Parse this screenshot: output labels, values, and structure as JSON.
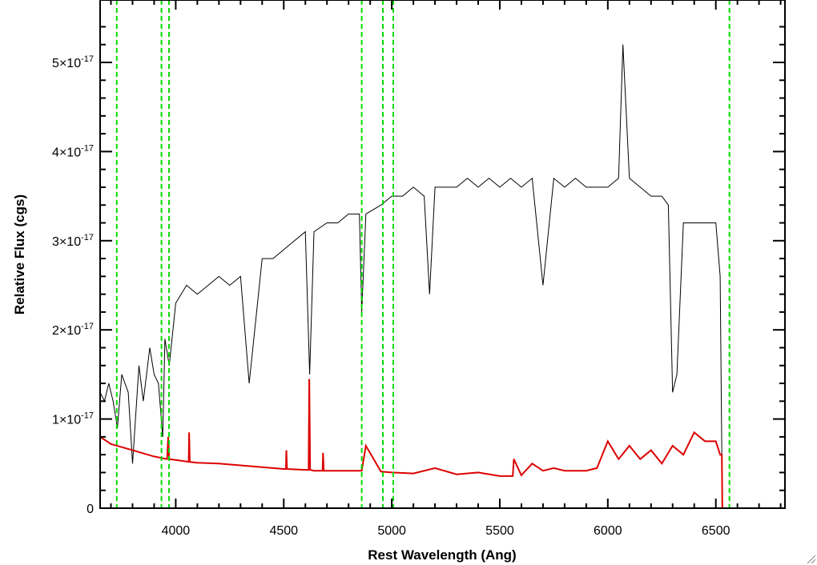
{
  "chart_data": {
    "type": "line",
    "title": "",
    "xlabel": "Rest Wavelength (Ang)",
    "ylabel": "Relative Flux (cgs)",
    "xlim": [
      3650,
      6820
    ],
    "ylim": [
      0,
      5.7e-17
    ],
    "xticks": [
      {
        "value": 4000,
        "label": "4000"
      },
      {
        "value": 4500,
        "label": "4500"
      },
      {
        "value": 5000,
        "label": "5000"
      },
      {
        "value": 5500,
        "label": "5500"
      },
      {
        "value": 6000,
        "label": "6000"
      },
      {
        "value": 6500,
        "label": "6500"
      }
    ],
    "yticks": [
      {
        "value": 0,
        "mant": "0",
        "exp": ""
      },
      {
        "value": 1e-17,
        "mant": "1×10",
        "exp": "-17"
      },
      {
        "value": 2e-17,
        "mant": "2×10",
        "exp": "-17"
      },
      {
        "value": 3e-17,
        "mant": "3×10",
        "exp": "-17"
      },
      {
        "value": 4e-17,
        "mant": "4×10",
        "exp": "-17"
      },
      {
        "value": 5e-17,
        "mant": "5×10",
        "exp": "-17"
      }
    ],
    "grid": false,
    "colors": {
      "spectrum": "#000000",
      "model": "#dd0000",
      "lines": "#00dd00"
    },
    "vertical_lines": [
      3727,
      3934,
      3969,
      4861,
      4959,
      5007,
      6563
    ],
    "series": [
      {
        "color": "#000000",
        "x": [
          3650,
          3670,
          3690,
          3710,
          3730,
          3750,
          3780,
          3800,
          3830,
          3850,
          3880,
          3900,
          3920,
          3940,
          3950,
          3970,
          4000,
          4050,
          4100,
          4150,
          4200,
          4250,
          4300,
          4340,
          4400,
          4450,
          4500,
          4550,
          4600,
          4620,
          4640,
          4700,
          4750,
          4800,
          4850,
          4861,
          4880,
          4950,
          5000,
          5050,
          5100,
          5150,
          5175,
          5200,
          5250,
          5300,
          5350,
          5400,
          5450,
          5500,
          5550,
          5600,
          5650,
          5700,
          5750,
          5800,
          5850,
          5900,
          5950,
          6000,
          6050,
          6070,
          6100,
          6150,
          6200,
          6250,
          6280,
          6300,
          6320,
          6350,
          6400,
          6450,
          6500,
          6520,
          6530,
          6540,
          6560,
          6600,
          6700,
          6820
        ],
        "y": [
          1.3e-17,
          1.2e-17,
          1.4e-17,
          1.2e-17,
          9e-18,
          1.5e-17,
          1.3e-17,
          5e-18,
          1.6e-17,
          1.2e-17,
          1.8e-17,
          1.5e-17,
          1.4e-17,
          8e-18,
          1.9e-17,
          1.6e-17,
          2.3e-17,
          2.5e-17,
          2.4e-17,
          2.5e-17,
          2.6e-17,
          2.5e-17,
          2.6e-17,
          1.4e-17,
          2.8e-17,
          2.8e-17,
          2.9e-17,
          3e-17,
          3.1e-17,
          1.5e-17,
          3.1e-17,
          3.2e-17,
          3.2e-17,
          3.3e-17,
          3.3e-17,
          2.2e-17,
          3.3e-17,
          3.4e-17,
          3.5e-17,
          3.5e-17,
          3.6e-17,
          3.5e-17,
          2.4e-17,
          3.6e-17,
          3.6e-17,
          3.6e-17,
          3.7e-17,
          3.6e-17,
          3.7e-17,
          3.6e-17,
          3.7e-17,
          3.6e-17,
          3.7e-17,
          2.5e-17,
          3.7e-17,
          3.6e-17,
          3.7e-17,
          3.6e-17,
          3.6e-17,
          3.6e-17,
          3.7e-17,
          5.2e-17,
          3.7e-17,
          3.6e-17,
          3.5e-17,
          3.5e-17,
          3.4e-17,
          1.3e-17,
          1.5e-17,
          3.2e-17,
          3.2e-17,
          3.2e-17,
          3.2e-17,
          2.6e-17,
          0,
          0,
          0,
          0,
          0,
          0
        ]
      },
      {
        "color": "#dd0000",
        "x": [
          3650,
          3700,
          3800,
          3900,
          3960,
          3965,
          3970,
          4000,
          4060,
          4062,
          4065,
          4100,
          4200,
          4300,
          4400,
          4500,
          4510,
          4512,
          4515,
          4600,
          4615,
          4618,
          4622,
          4640,
          4680,
          4682,
          4685,
          4800,
          4861,
          4880,
          4950,
          5000,
          5100,
          5200,
          5300,
          5400,
          5500,
          5550,
          5560,
          5565,
          5600,
          5650,
          5700,
          5750,
          5800,
          5900,
          5950,
          6000,
          6050,
          6100,
          6150,
          6200,
          6250,
          6300,
          6350,
          6400,
          6450,
          6500,
          6520,
          6528,
          6530,
          6540,
          6600,
          6700,
          6820
        ],
        "y": [
          8e-18,
          7.2e-18,
          6.5e-18,
          5.8e-18,
          5.5e-18,
          8e-18,
          5.5e-18,
          5.4e-18,
          5.2e-18,
          8.5e-18,
          5.2e-18,
          5.1e-18,
          5e-18,
          4.8e-18,
          4.6e-18,
          4.4e-18,
          4.4e-18,
          6.5e-18,
          4.4e-18,
          4.3e-18,
          4.3e-18,
          1.45e-17,
          4.3e-18,
          4.2e-18,
          4.2e-18,
          6.2e-18,
          4.2e-18,
          4.2e-18,
          4.2e-18,
          7e-18,
          4.1e-18,
          4e-18,
          3.9e-18,
          4.5e-18,
          3.8e-18,
          4e-18,
          3.6e-18,
          3.6e-18,
          3.6e-18,
          5.5e-18,
          3.7e-18,
          5e-18,
          4.2e-18,
          4.5e-18,
          4.2e-18,
          4.2e-18,
          4.5e-18,
          7.5e-18,
          5.5e-18,
          7e-18,
          5.5e-18,
          6.5e-18,
          5e-18,
          7e-18,
          6e-18,
          8.5e-18,
          7.5e-18,
          7.5e-18,
          6e-18,
          6e-18,
          0,
          0,
          0,
          0,
          0
        ]
      }
    ]
  }
}
